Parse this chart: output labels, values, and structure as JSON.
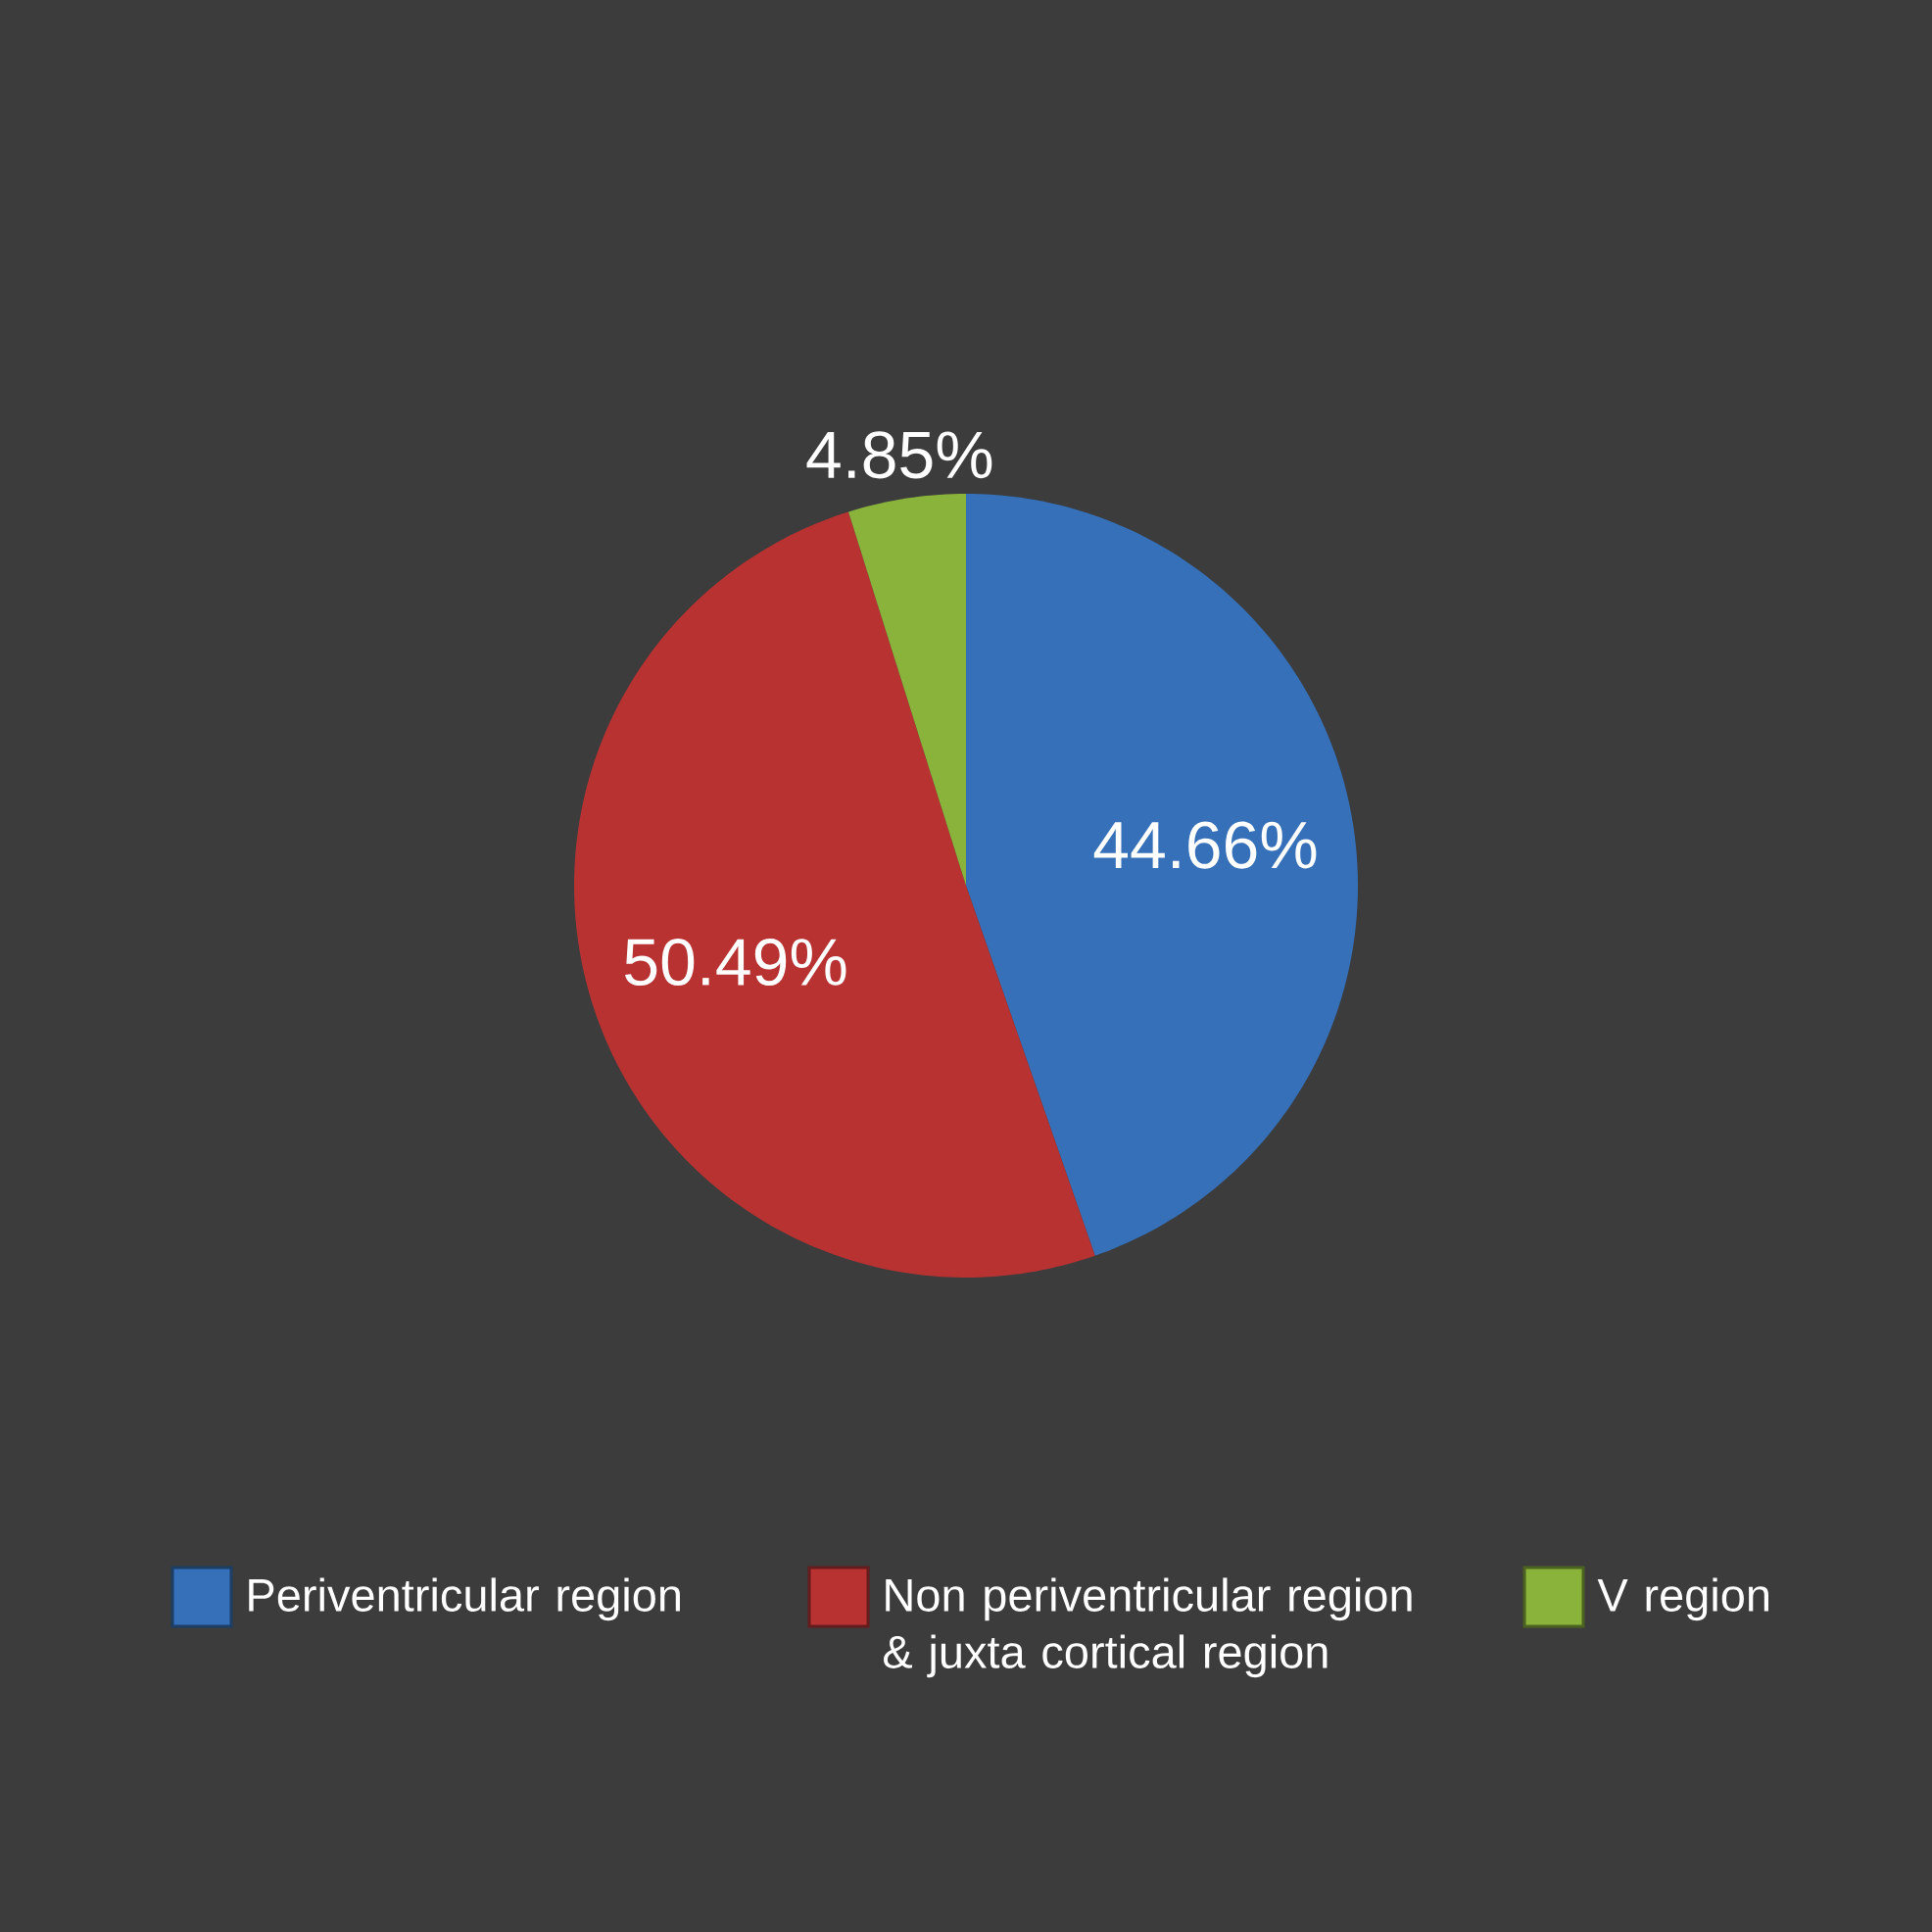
{
  "chart_data": {
    "type": "pie",
    "categories": [
      "Periventricular region",
      "Non periventricular region & juxta cortical region",
      "V region"
    ],
    "values": [
      44.66,
      50.49,
      4.85
    ],
    "colors": [
      "#3570b8",
      "#b83232",
      "#8ab33c"
    ],
    "value_labels": [
      "44.66%",
      "50.49%",
      "4.85%"
    ],
    "legend": "bottom"
  }
}
